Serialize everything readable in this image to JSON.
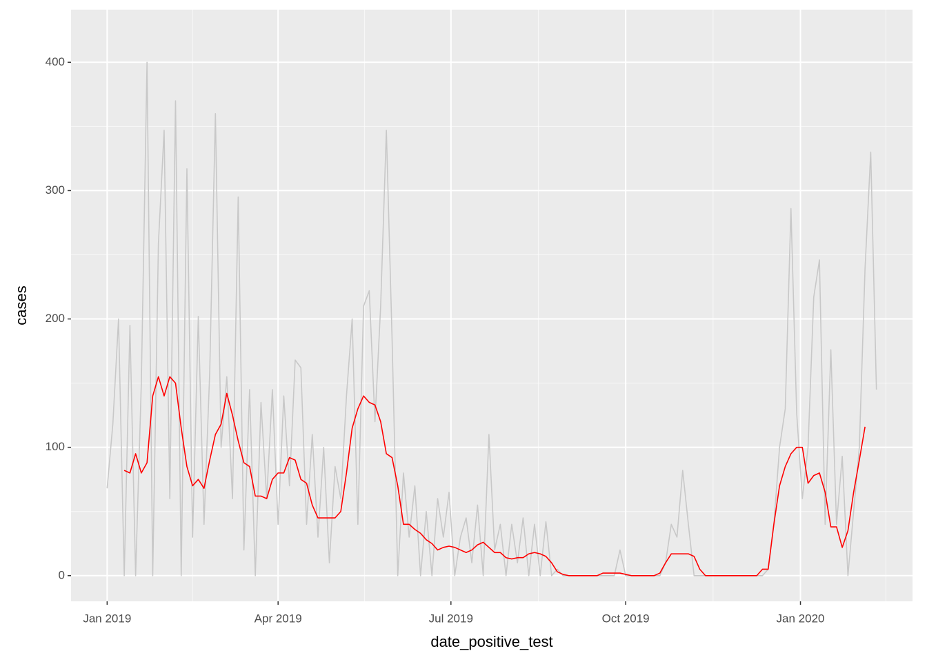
{
  "chart_data": {
    "type": "line",
    "x_label": "date_positive_test",
    "y_label": "cases",
    "x": [
      0,
      3,
      6,
      9,
      12,
      15,
      18,
      21,
      24,
      27,
      30,
      33,
      36,
      39,
      42,
      45,
      48,
      51,
      54,
      57,
      60,
      63,
      66,
      69,
      72,
      75,
      78,
      81,
      84,
      87,
      90,
      93,
      96,
      99,
      102,
      105,
      108,
      111,
      114,
      117,
      120,
      123,
      126,
      129,
      132,
      135,
      138,
      141,
      144,
      147,
      150,
      153,
      156,
      159,
      162,
      165,
      168,
      171,
      174,
      177,
      180,
      183,
      186,
      189,
      192,
      195,
      198,
      201,
      204,
      207,
      210,
      213,
      216,
      219,
      222,
      225,
      228,
      231,
      234,
      237,
      240,
      243,
      246,
      249,
      252,
      255,
      258,
      261,
      264,
      267,
      270,
      273,
      276,
      279,
      282,
      285,
      288,
      291,
      294,
      297,
      300,
      303,
      306,
      309,
      312,
      315,
      318,
      321,
      324,
      327,
      330,
      333,
      336,
      339,
      342,
      345,
      348,
      351,
      354,
      357,
      360,
      363,
      366,
      369,
      372,
      375,
      378,
      381,
      384,
      387,
      390,
      393,
      396,
      399,
      402,
      405
    ],
    "series": [
      {
        "color": "#c8c8c8",
        "values": [
          68,
          118,
          200,
          0,
          195,
          0,
          150,
          400,
          0,
          259,
          347,
          60,
          370,
          0,
          317,
          30,
          202,
          40,
          158,
          360,
          100,
          155,
          60,
          295,
          20,
          145,
          0,
          135,
          60,
          145,
          40,
          140,
          70,
          168,
          162,
          40,
          110,
          30,
          100,
          10,
          85,
          60,
          140,
          200,
          40,
          210,
          222,
          120,
          210,
          347,
          185,
          0,
          80,
          30,
          70,
          0,
          50,
          0,
          60,
          30,
          65,
          0,
          30,
          45,
          10,
          55,
          0,
          110,
          20,
          40,
          0,
          40,
          10,
          45,
          0,
          40,
          0,
          42,
          0,
          5,
          0,
          0,
          0,
          0,
          0,
          0,
          0,
          0,
          0,
          0,
          20,
          0,
          0,
          0,
          0,
          0,
          0,
          0,
          10,
          40,
          30,
          82,
          40,
          0,
          0,
          0,
          0,
          0,
          0,
          0,
          0,
          0,
          0,
          0,
          0,
          0,
          5,
          40,
          100,
          130,
          286,
          127,
          60,
          100,
          217,
          246,
          40,
          176,
          40,
          93,
          0,
          50,
          100,
          239,
          330,
          145
        ]
      },
      {
        "color": "#ff0000",
        "values": [
          null,
          null,
          null,
          82,
          80,
          95,
          80,
          88,
          140,
          155,
          140,
          155,
          150,
          115,
          85,
          70,
          75,
          68,
          90,
          110,
          118,
          142,
          125,
          105,
          88,
          85,
          62,
          62,
          60,
          75,
          80,
          80,
          92,
          90,
          75,
          72,
          55,
          45,
          45,
          45,
          45,
          50,
          80,
          115,
          130,
          140,
          135,
          133,
          120,
          95,
          92,
          70,
          40,
          40,
          36,
          33,
          28,
          25,
          20,
          22,
          23,
          22,
          20,
          18,
          20,
          24,
          26,
          22,
          18,
          18,
          14,
          13,
          14,
          14,
          17,
          18,
          17,
          15,
          10,
          3,
          1,
          0,
          0,
          0,
          0,
          0,
          0,
          2,
          2,
          2,
          2,
          1,
          0,
          0,
          0,
          0,
          0,
          2,
          10,
          17,
          17,
          17,
          17,
          15,
          5,
          0,
          0,
          0,
          0,
          0,
          0,
          0,
          0,
          0,
          0,
          5,
          5,
          40,
          70,
          85,
          95,
          100,
          100,
          72,
          78,
          80,
          65,
          38,
          38,
          22,
          35,
          65,
          90,
          116,
          null,
          null
        ]
      }
    ],
    "xlim": [
      -19,
      424
    ],
    "xticks": [
      {
        "value": 0,
        "label": "Jan 2019"
      },
      {
        "value": 90,
        "label": "Apr 2019"
      },
      {
        "value": 181,
        "label": "Jul 2019"
      },
      {
        "value": 273,
        "label": "Oct 2019"
      },
      {
        "value": 365,
        "label": "Jan 2020"
      }
    ],
    "ylim": [
      -20,
      441
    ],
    "yticks": [
      0,
      100,
      200,
      300,
      400
    ],
    "grid": true
  }
}
